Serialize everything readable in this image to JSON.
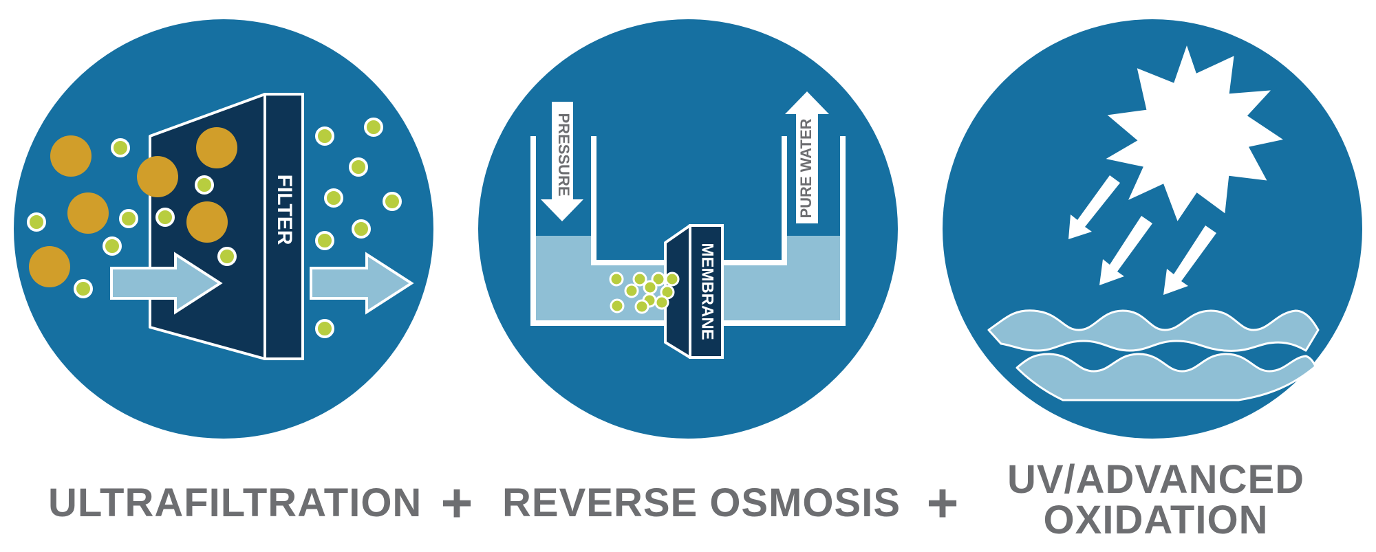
{
  "colors": {
    "circle": "#1670a1",
    "dark_panel": "#0d3455",
    "light_water": "#8fbfd5",
    "brown_particle": "#d19e2a",
    "green_particle": "#b8cd3f",
    "white": "#ffffff",
    "caption_gray": "#6d6e71"
  },
  "panels": [
    {
      "caption": "ULTRAFILTRATION",
      "labels": {
        "filter": "FILTER"
      },
      "icon": "filter-icon"
    },
    {
      "caption": "REVERSE OSMOSIS",
      "labels": {
        "pressure": "PRESSURE",
        "pure_water": "PURE WATER",
        "membrane": "MEMBRANE"
      },
      "icon": "membrane-icon"
    },
    {
      "caption_lines": [
        "UV/ADVANCED",
        "OXIDATION"
      ],
      "icon": "sun-icon"
    }
  ],
  "plus_signs": [
    "+",
    "+"
  ]
}
